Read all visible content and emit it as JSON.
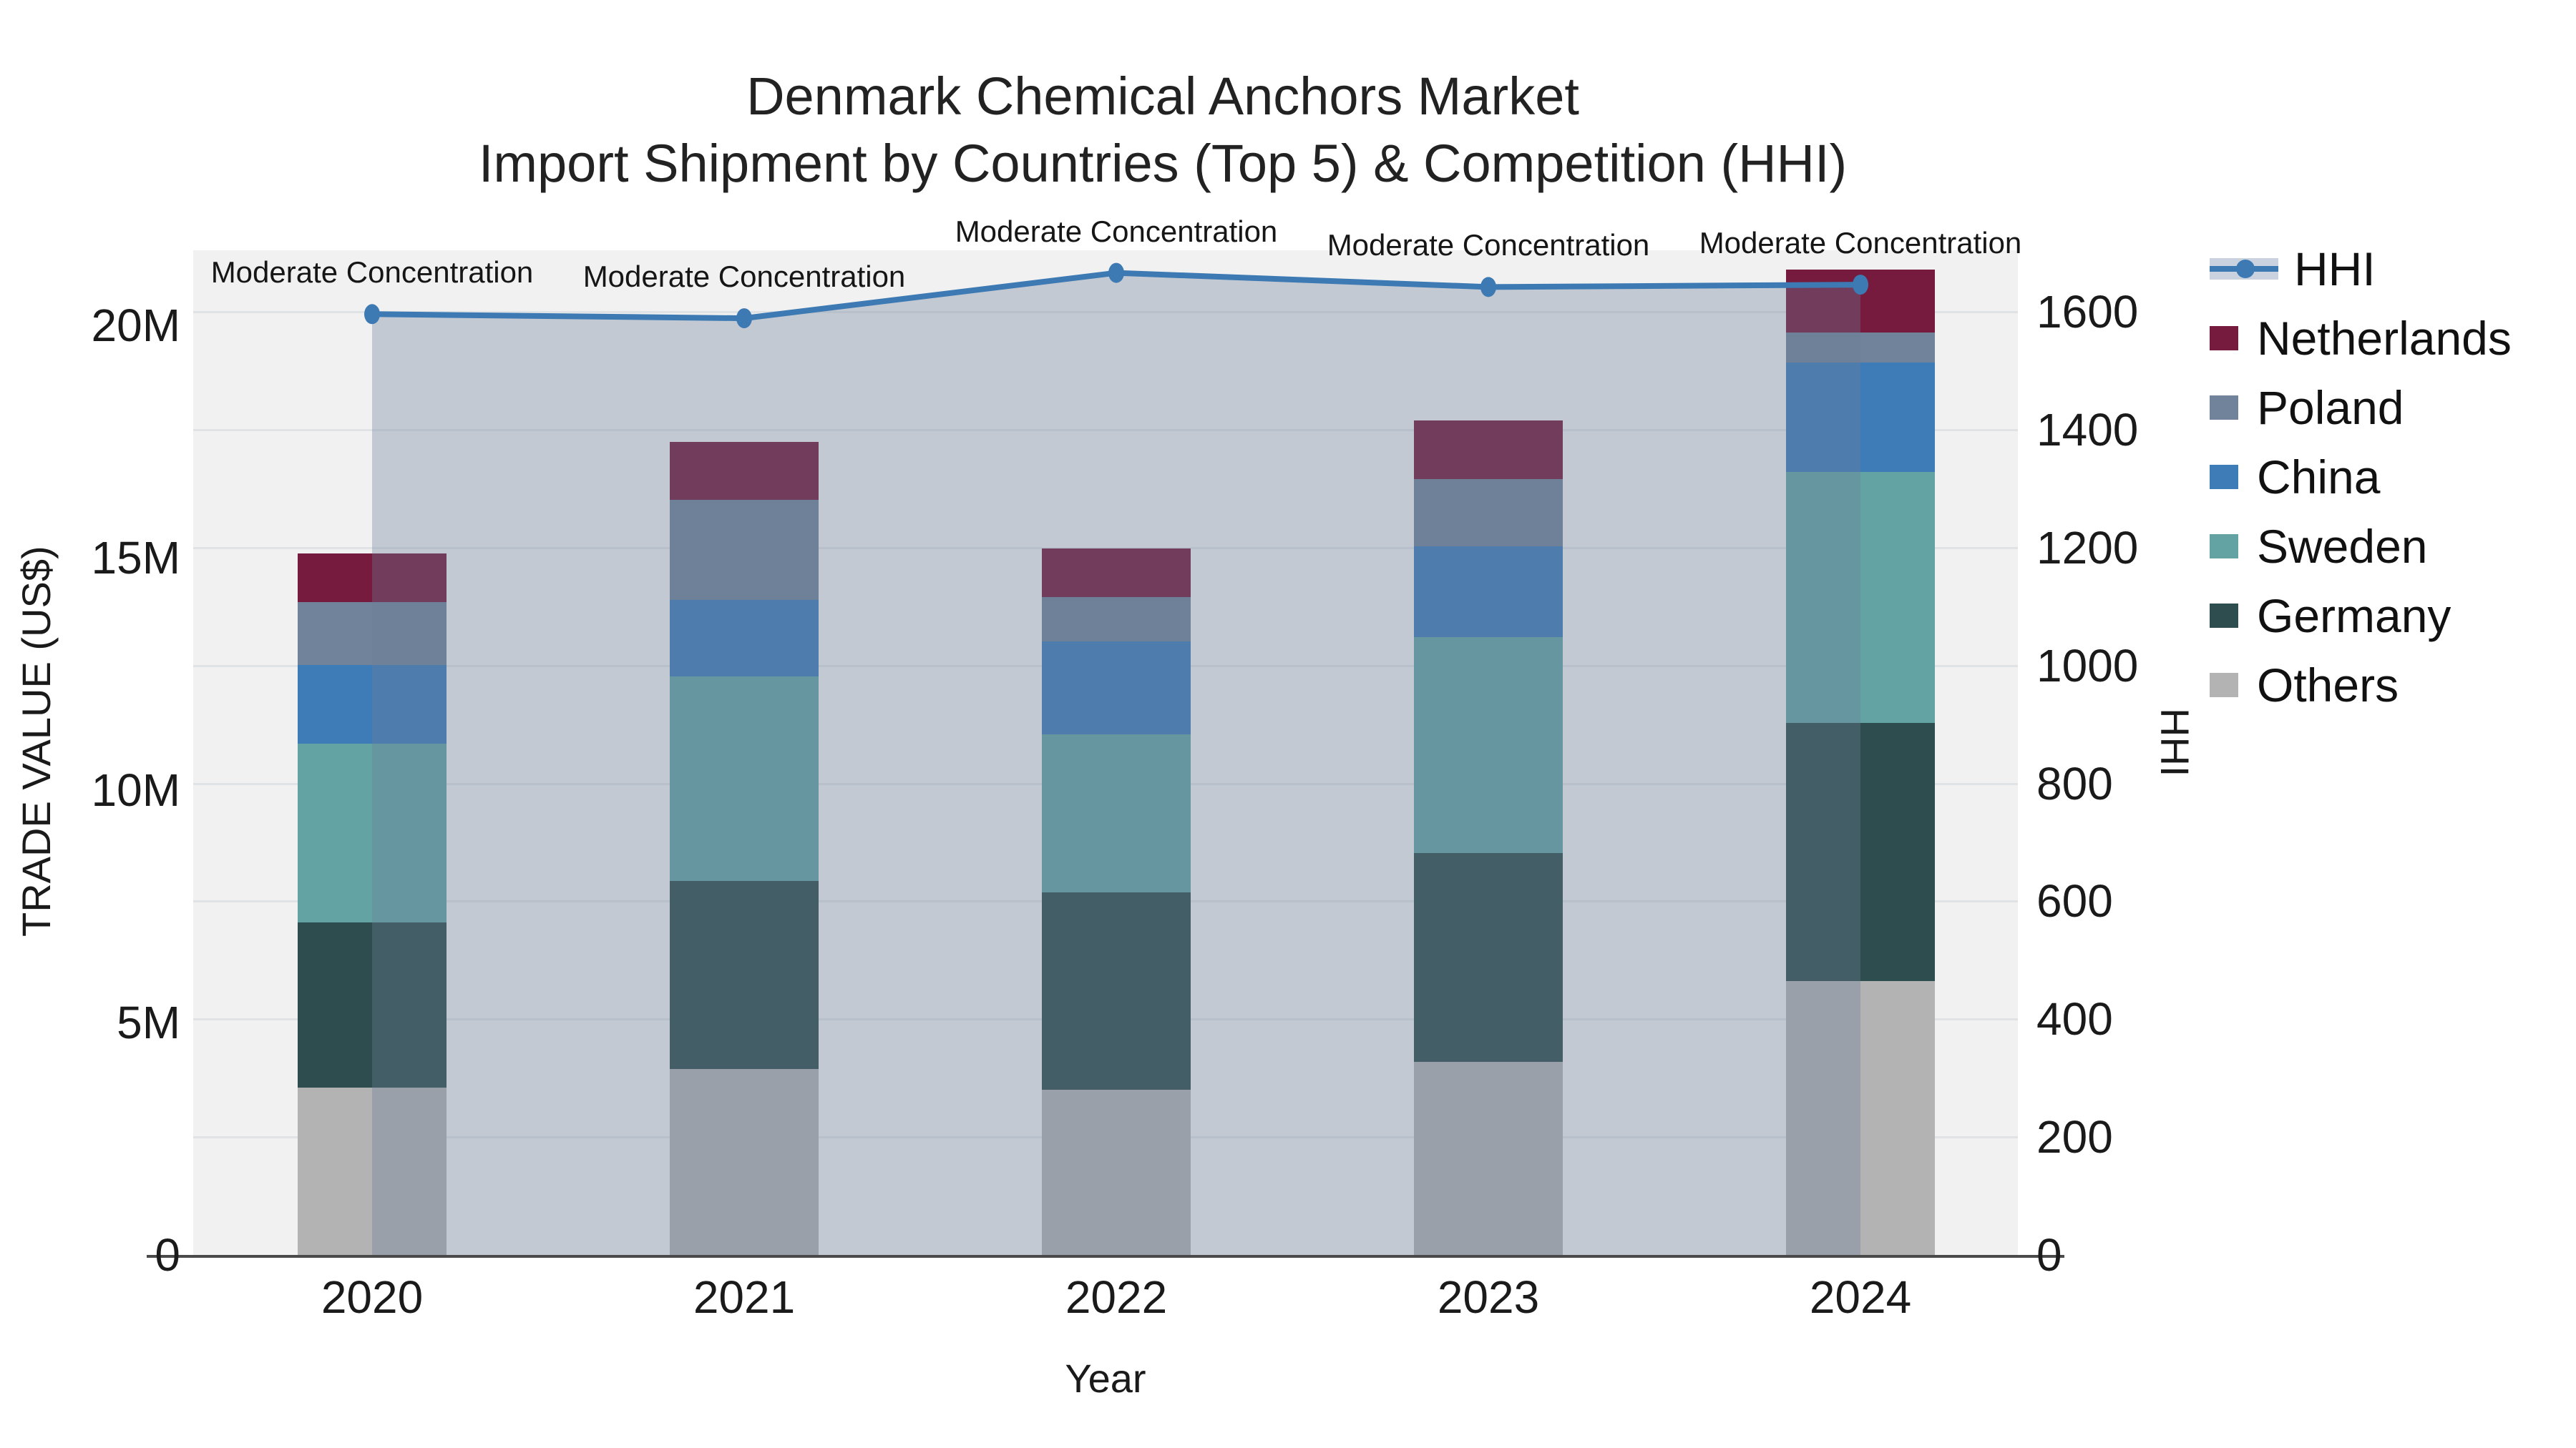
{
  "title": {
    "line1": "Denmark Chemical Anchors Market",
    "line2": "Import Shipment by Countries (Top 5) & Competition (HHI)"
  },
  "axes": {
    "y_left_title": "TRADE VALUE (US$)",
    "y_right_title": "HHI",
    "x_title": "Year",
    "y_left_ticks": [
      "0",
      "5M",
      "10M",
      "15M",
      "20M"
    ],
    "y_left_tick_values": [
      0,
      5,
      10,
      15,
      20
    ],
    "y_right_ticks": [
      "0",
      "200",
      "400",
      "600",
      "800",
      "1000",
      "1200",
      "1400",
      "1600"
    ],
    "y_right_tick_values": [
      0,
      200,
      400,
      600,
      800,
      1000,
      1200,
      1400,
      1600
    ]
  },
  "legend": [
    {
      "label": "HHI",
      "type": "line",
      "color": "#3d7ab3"
    },
    {
      "label": "Netherlands",
      "type": "swatch",
      "color": "#761b3d"
    },
    {
      "label": "Poland",
      "type": "swatch",
      "color": "#71839a"
    },
    {
      "label": "China",
      "type": "swatch",
      "color": "#3e7cb8"
    },
    {
      "label": "Sweden",
      "type": "swatch",
      "color": "#63a3a4"
    },
    {
      "label": "Germany",
      "type": "swatch",
      "color": "#2e4d4f"
    },
    {
      "label": "Others",
      "type": "swatch",
      "color": "#b3b3b3"
    }
  ],
  "annotations": [
    {
      "text": "Moderate Concentration",
      "year": "2020"
    },
    {
      "text": "Moderate Concentration",
      "year": "2021"
    },
    {
      "text": "Moderate Concentration",
      "year": "2022"
    },
    {
      "text": "Moderate Concentration",
      "year": "2023"
    },
    {
      "text": "Moderate Concentration",
      "year": "2024"
    }
  ],
  "chart_data": {
    "type": "bar",
    "subtype": "stacked-bars-with-line",
    "title": "Denmark Chemical Anchors Market — Import Shipment by Countries (Top 5) & Competition (HHI)",
    "categories": [
      "2020",
      "2021",
      "2022",
      "2023",
      "2024"
    ],
    "xlabel": "Year",
    "ylabel_left": "TRADE VALUE (US$)",
    "ylabel_right": "HHI",
    "ylim_left_millions": [
      0,
      21.6
    ],
    "ylim_right": [
      0,
      1704
    ],
    "units": "millions USD",
    "stack_order_bottom_to_top": [
      "Others",
      "Germany",
      "Sweden",
      "China",
      "Poland",
      "Netherlands"
    ],
    "series": [
      {
        "name": "Others",
        "color": "#b3b3b3",
        "values": [
          3.6,
          4.0,
          3.55,
          4.15,
          5.9
        ]
      },
      {
        "name": "Germany",
        "color": "#2e4d4f",
        "values": [
          3.55,
          4.05,
          4.25,
          4.5,
          5.55
        ]
      },
      {
        "name": "Sweden",
        "color": "#63a3a4",
        "values": [
          3.85,
          4.4,
          3.4,
          4.65,
          5.4
        ]
      },
      {
        "name": "China",
        "color": "#3e7cb8",
        "values": [
          1.7,
          1.65,
          2.0,
          1.95,
          2.35
        ]
      },
      {
        "name": "Poland",
        "color": "#71839a",
        "values": [
          1.35,
          2.15,
          0.95,
          1.45,
          0.65
        ]
      },
      {
        "name": "Netherlands",
        "color": "#761b3d",
        "values": [
          1.05,
          1.25,
          1.05,
          1.25,
          1.35
        ]
      }
    ],
    "totals_millions": [
      15.1,
      17.5,
      15.2,
      17.95,
      21.2
    ],
    "hhi_line": {
      "name": "HHI",
      "color": "#3d7ab3",
      "fill_color": "rgba(108,126,151,0.35)",
      "values": [
        1596,
        1589,
        1666,
        1642,
        1646
      ]
    },
    "grid": true,
    "legend_position": "right"
  }
}
